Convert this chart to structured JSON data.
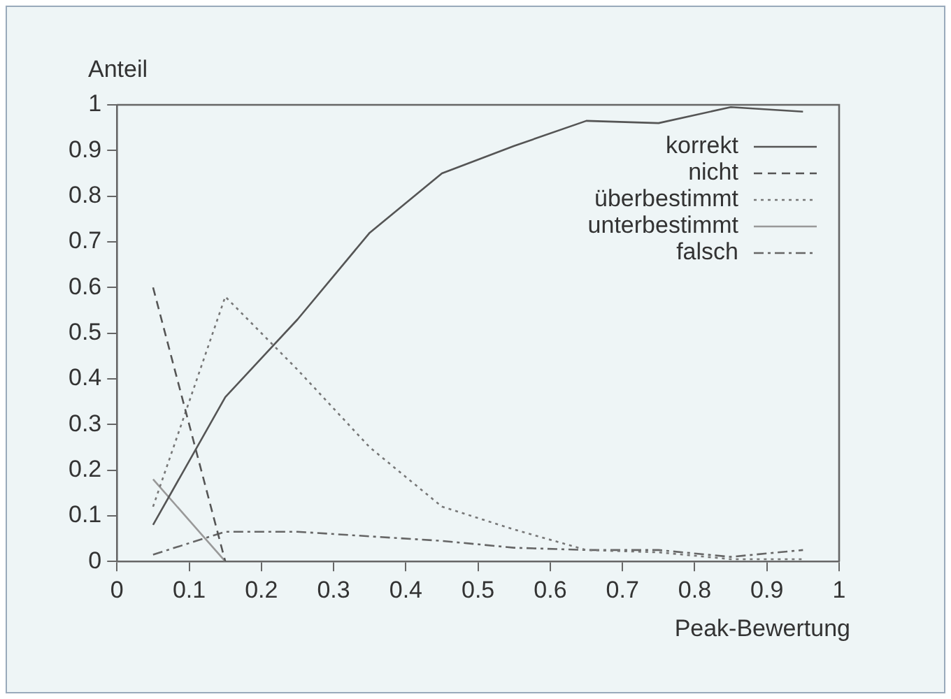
{
  "chart_data": {
    "type": "line",
    "xlabel": "Peak-Bewertung",
    "ylabel": "Anteil",
    "x": [
      0.05,
      0.15,
      0.25,
      0.35,
      0.45,
      0.55,
      0.65,
      0.75,
      0.85,
      0.95
    ],
    "xlim": [
      0,
      1
    ],
    "xticks": [
      0,
      0.1,
      0.2,
      0.3,
      0.4,
      0.5,
      0.6,
      0.7,
      0.8,
      0.9,
      1
    ],
    "ylim": [
      0,
      1
    ],
    "yticks": [
      0,
      0.1,
      0.2,
      0.3,
      0.4,
      0.5,
      0.6,
      0.7,
      0.8,
      0.9,
      1
    ],
    "grid": false,
    "legend": "top right",
    "marker": "none",
    "series": [
      {
        "name": "korrekt",
        "color": "#555555",
        "line_style": "solid",
        "values": [
          0.08,
          0.36,
          0.53,
          0.72,
          0.85,
          0.91,
          0.965,
          0.96,
          0.995,
          0.985
        ]
      },
      {
        "name": "nicht",
        "color": "#555555",
        "line_style": "dashed",
        "values": [
          0.6,
          0,
          null,
          null,
          null,
          null,
          null,
          null,
          null,
          null
        ]
      },
      {
        "name": "überbestimmt",
        "color": "#777777",
        "line_style": "dotted",
        "values": [
          0.12,
          0.58,
          0.42,
          0.25,
          0.12,
          0.07,
          0.025,
          0.02,
          0.005,
          0.005
        ]
      },
      {
        "name": "unterbestimmt",
        "color": "#999999",
        "line_style": "solid",
        "values": [
          0.18,
          0,
          null,
          null,
          null,
          null,
          null,
          null,
          null,
          null
        ]
      },
      {
        "name": "falsch",
        "color": "#666666",
        "line_style": "dashdot",
        "values": [
          0.015,
          0.065,
          0.065,
          0.055,
          0.045,
          0.03,
          0.025,
          0.025,
          0.01,
          0.025
        ]
      }
    ]
  }
}
